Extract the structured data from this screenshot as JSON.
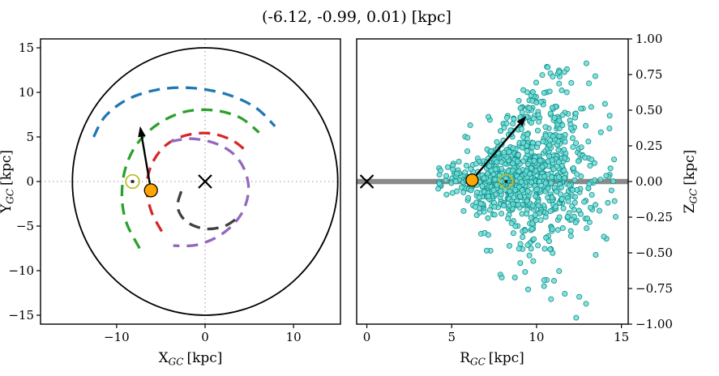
{
  "title": "(-6.12, -0.99, 0.01) [kpc]",
  "chart_data": [
    {
      "id": "galactic-xy-projection",
      "type": "line",
      "xlabel": {
        "main": "X",
        "sub": "GC",
        "unit": "[kpc]"
      },
      "ylabel": {
        "main": "Y",
        "sub": "GC",
        "unit": "[kpc]"
      },
      "xlim": [
        -18.6,
        15.3
      ],
      "ylim": [
        -16,
        16
      ],
      "xticks": [
        -10,
        0,
        10
      ],
      "xtick_labels": [
        "−10",
        "0",
        "10"
      ],
      "yticks": [
        15,
        10,
        5,
        0,
        -5,
        -10,
        -15
      ],
      "ytick_labels": [
        "15",
        "10",
        "5",
        "0",
        "−5",
        "−10",
        "−15"
      ],
      "grid": false,
      "solar_circle": {
        "center": [
          0,
          0
        ],
        "radius": 15,
        "color": "#000000"
      },
      "crosshair": {
        "x": 0,
        "y": 0,
        "color": "#9a9a9a"
      },
      "galactic_center_marker": {
        "x": 0,
        "y": 0,
        "symbol": "x",
        "color": "#000000"
      },
      "sun_marker": {
        "x": -8.2,
        "y": 0,
        "symbol": "circled-dot",
        "color": "#bcbd22",
        "dot_color": "#222222"
      },
      "object_marker": {
        "x": -6.12,
        "y": -0.99,
        "color": "#ffa500",
        "edge_color": "#000000"
      },
      "velocity_arrow": {
        "x1": -6.12,
        "y1": -0.99,
        "x2": -7.35,
        "y2": 6.2,
        "color": "#000000"
      },
      "spiral_arms": [
        {
          "name": "blue",
          "color": "#1f77b4",
          "points": [
            [
              -12.6,
              5.0
            ],
            [
              -11.3,
              7.3
            ],
            [
              -8.8,
              9.2
            ],
            [
              -5.4,
              10.3
            ],
            [
              -1.6,
              10.5
            ],
            [
              2.4,
              9.8
            ],
            [
              5.7,
              8.3
            ],
            [
              7.9,
              6.2
            ]
          ]
        },
        {
          "name": "green",
          "color": "#2ca02c",
          "points": [
            [
              -7.4,
              -7.5
            ],
            [
              -8.9,
              -4.6
            ],
            [
              -9.4,
              -1.6
            ],
            [
              -9.0,
              1.5
            ],
            [
              -7.7,
              4.2
            ],
            [
              -5.4,
              6.4
            ],
            [
              -2.4,
              7.8
            ],
            [
              0.9,
              8.0
            ],
            [
              3.9,
              7.2
            ],
            [
              6.1,
              5.5
            ]
          ]
        },
        {
          "name": "red",
          "color": "#d62728",
          "points": [
            [
              -4.9,
              -5.6
            ],
            [
              -6.1,
              -3.3
            ],
            [
              -6.6,
              -0.6
            ],
            [
              -6.0,
              2.0
            ],
            [
              -4.4,
              4.1
            ],
            [
              -2.1,
              5.2
            ],
            [
              0.6,
              5.4
            ],
            [
              3.1,
              4.6
            ],
            [
              4.9,
              3.2
            ]
          ]
        },
        {
          "name": "purple",
          "color": "#9467bd",
          "points": [
            [
              -3.9,
              4.5
            ],
            [
              -1.5,
              4.8
            ],
            [
              1.1,
              4.3
            ],
            [
              3.2,
              3.1
            ],
            [
              4.5,
              1.2
            ],
            [
              4.9,
              -1.2
            ],
            [
              4.0,
              -3.8
            ],
            [
              1.9,
              -5.9
            ],
            [
              -0.9,
              -7.1
            ],
            [
              -3.6,
              -7.2
            ]
          ]
        },
        {
          "name": "dark-gray",
          "color": "#404040",
          "points": [
            [
              -2.7,
              -1.1
            ],
            [
              -3.1,
              -2.9
            ],
            [
              -2.1,
              -4.5
            ],
            [
              0.0,
              -5.3
            ],
            [
              2.2,
              -5.0
            ],
            [
              3.9,
              -3.9
            ]
          ]
        }
      ]
    },
    {
      "id": "galactic-rz-projection",
      "type": "scatter",
      "xlabel": {
        "main": "R",
        "sub": "GC",
        "unit": "[kpc]"
      },
      "ylabel": {
        "main": "Z",
        "sub": "GC",
        "unit": "[kpc]"
      },
      "xlim": [
        -0.6,
        15.4
      ],
      "ylim": [
        -1,
        1
      ],
      "xticks": [
        0,
        5,
        10,
        15
      ],
      "xtick_labels": [
        "0",
        "5",
        "10",
        "15"
      ],
      "yticks": [
        1.0,
        0.75,
        0.5,
        0.25,
        0.0,
        -0.25,
        -0.5,
        -0.75,
        -1.0
      ],
      "ytick_labels": [
        "1.00",
        "0.75",
        "0.50",
        "0.25",
        "0.00",
        "−0.25",
        "−0.50",
        "−0.75",
        "−1.00"
      ],
      "grid": false,
      "midplane_line": {
        "z": 0,
        "color": "#8a8a8a",
        "width": 6.5
      },
      "galactic_center_marker": {
        "x": 0,
        "y": 0,
        "symbol": "x",
        "color": "#000000"
      },
      "sun_marker": {
        "x": 8.2,
        "y": 0,
        "symbol": "circled-dot",
        "color": "#bcbd22",
        "dot_color": "#222222"
      },
      "object_marker": {
        "x": 6.2,
        "y": 0.01,
        "color": "#ffa500",
        "edge_color": "#000000"
      },
      "velocity_arrow": {
        "x1": 6.2,
        "y1": 0.01,
        "x2": 9.4,
        "y2": 0.46,
        "color": "#000000"
      },
      "scatter": {
        "seed": 20,
        "n_main": 800,
        "n_plume": 150,
        "R_mean": 9.2,
        "R_sigma": 2.35,
        "R_min": 4.2,
        "R_max": 15.35,
        "Z_range": [
          -1,
          1
        ],
        "core_fraction": 0.68,
        "marker_color": "#72dcd6",
        "marker_edge_color": "#0d8f8a"
      }
    }
  ]
}
